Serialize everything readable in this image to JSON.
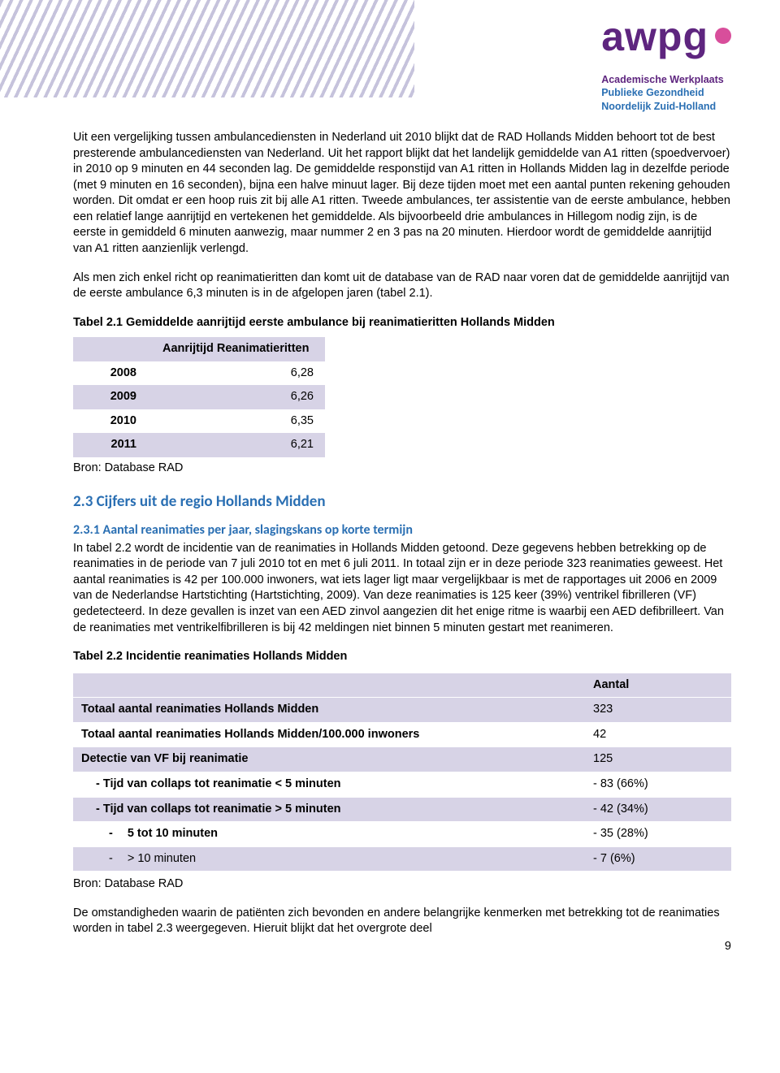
{
  "logo": {
    "main": "awpg",
    "sub_line1": "Academische Werkplaats",
    "sub_line2": "Publieke Gezondheid",
    "sub_line3": "Noordelijk Zuid-Holland"
  },
  "para1": "Uit een vergelijking tussen ambulancediensten in Nederland uit 2010 blijkt dat de RAD Hollands Midden behoort tot de best presterende ambulancediensten van Nederland. Uit het rapport blijkt dat het landelijk gemiddelde van A1 ritten (spoedvervoer) in 2010 op 9 minuten en 44 seconden lag. De gemiddelde responstijd van A1 ritten in Hollands Midden lag in dezelfde periode (met 9 minuten en 16 seconden), bijna een halve minuut lager. Bij deze tijden moet met een aantal punten rekening gehouden worden. Dit omdat er een hoop ruis zit bij alle A1 ritten. Tweede ambulances, ter assistentie van de eerste ambulance, hebben een relatief lange aanrijtijd en vertekenen het gemiddelde. Als bijvoorbeeld drie ambulances in Hillegom nodig zijn, is de eerste in gemiddeld 6 minuten aanwezig, maar nummer 2 en 3 pas na 20 minuten. Hierdoor wordt de gemiddelde aanrijtijd van A1 ritten aanzienlijk verlengd.",
  "para2": "Als men zich enkel richt op reanimatieritten dan komt uit de database van de RAD naar voren dat de gemiddelde aanrijtijd van de eerste ambulance 6,3 minuten is in de afgelopen jaren (tabel 2.1).",
  "table1": {
    "caption": "Tabel 2.1 Gemiddelde aanrijtijd eerste ambulance bij reanimatieritten Hollands Midden",
    "header": "Aanrijtijd Reanimatieritten",
    "rows": [
      {
        "year": "2008",
        "val": "6,28"
      },
      {
        "year": "2009",
        "val": "6,26"
      },
      {
        "year": "2010",
        "val": "6,35"
      },
      {
        "year": "2011",
        "val": "6,21"
      }
    ],
    "source": "Bron: Database RAD"
  },
  "headings": {
    "h23": "2.3 Cijfers uit de regio Hollands Midden",
    "h231": "2.3.1 Aantal reanimaties per jaar, slagingskans op korte termijn"
  },
  "para3": "In tabel 2.2 wordt de incidentie van de reanimaties in Hollands Midden getoond. Deze gegevens hebben betrekking op de reanimaties in de periode van 7 juli 2010 tot en met 6 juli 2011. In totaal zijn er in deze periode 323 reanimaties geweest. Het aantal reanimaties is 42 per 100.000 inwoners, wat iets lager ligt maar vergelijkbaar is met de rapportages uit 2006 en 2009 van de Nederlandse Hartstichting (Hartstichting, 2009). Van deze reanimaties is 125 keer (39%) ventrikel fibrilleren (VF) gedetecteerd. In deze gevallen is inzet van een AED zinvol aangezien dit het enige ritme is waarbij een AED defibrilleert. Van de reanimaties met ventrikelfibrilleren is bij 42 meldingen niet binnen 5 minuten gestart met reanimeren.",
  "table2": {
    "caption": "Tabel 2.2 Incidentie reanimaties Hollands Midden",
    "col_header": "Aantal",
    "rows": [
      {
        "label": "Totaal aantal reanimaties Hollands Midden",
        "val": "323",
        "band": true,
        "bold": true
      },
      {
        "label": "Totaal aantal reanimaties Hollands Midden/100.000 inwoners",
        "val": "42",
        "band": false,
        "bold": true
      },
      {
        "label": "Detectie van VF bij reanimatie",
        "val": "125",
        "band": true,
        "bold": true
      },
      {
        "label": "- Tijd van collaps tot reanimatie < 5 minuten",
        "val": "- 83 (66%)",
        "band": false,
        "bold": true,
        "indent": 1
      },
      {
        "label": "- Tijd van collaps tot reanimatie > 5 minuten",
        "val": "- 42 (34%)",
        "band": true,
        "bold": true,
        "indent": 1
      },
      {
        "label": "5 tot 10 minuten",
        "val": "- 35 (28%)",
        "band": false,
        "bold": true,
        "indent": 2,
        "dash": true
      },
      {
        "label": "> 10 minuten",
        "val": "- 7 (6%)",
        "band": true,
        "bold": false,
        "indent": 2,
        "dash": true
      }
    ],
    "source": "Bron: Database RAD"
  },
  "para4": "De omstandigheden waarin de patiënten zich bevonden en andere belangrijke kenmerken met betrekking tot de reanimaties worden in tabel 2.3 weergegeven. Hieruit blijkt dat het overgrote deel",
  "page_number": "9",
  "colors": {
    "purple": "#5e257f",
    "pink": "#d84e9b",
    "blue": "#2a6fb3",
    "band": "#d7d3e6"
  }
}
